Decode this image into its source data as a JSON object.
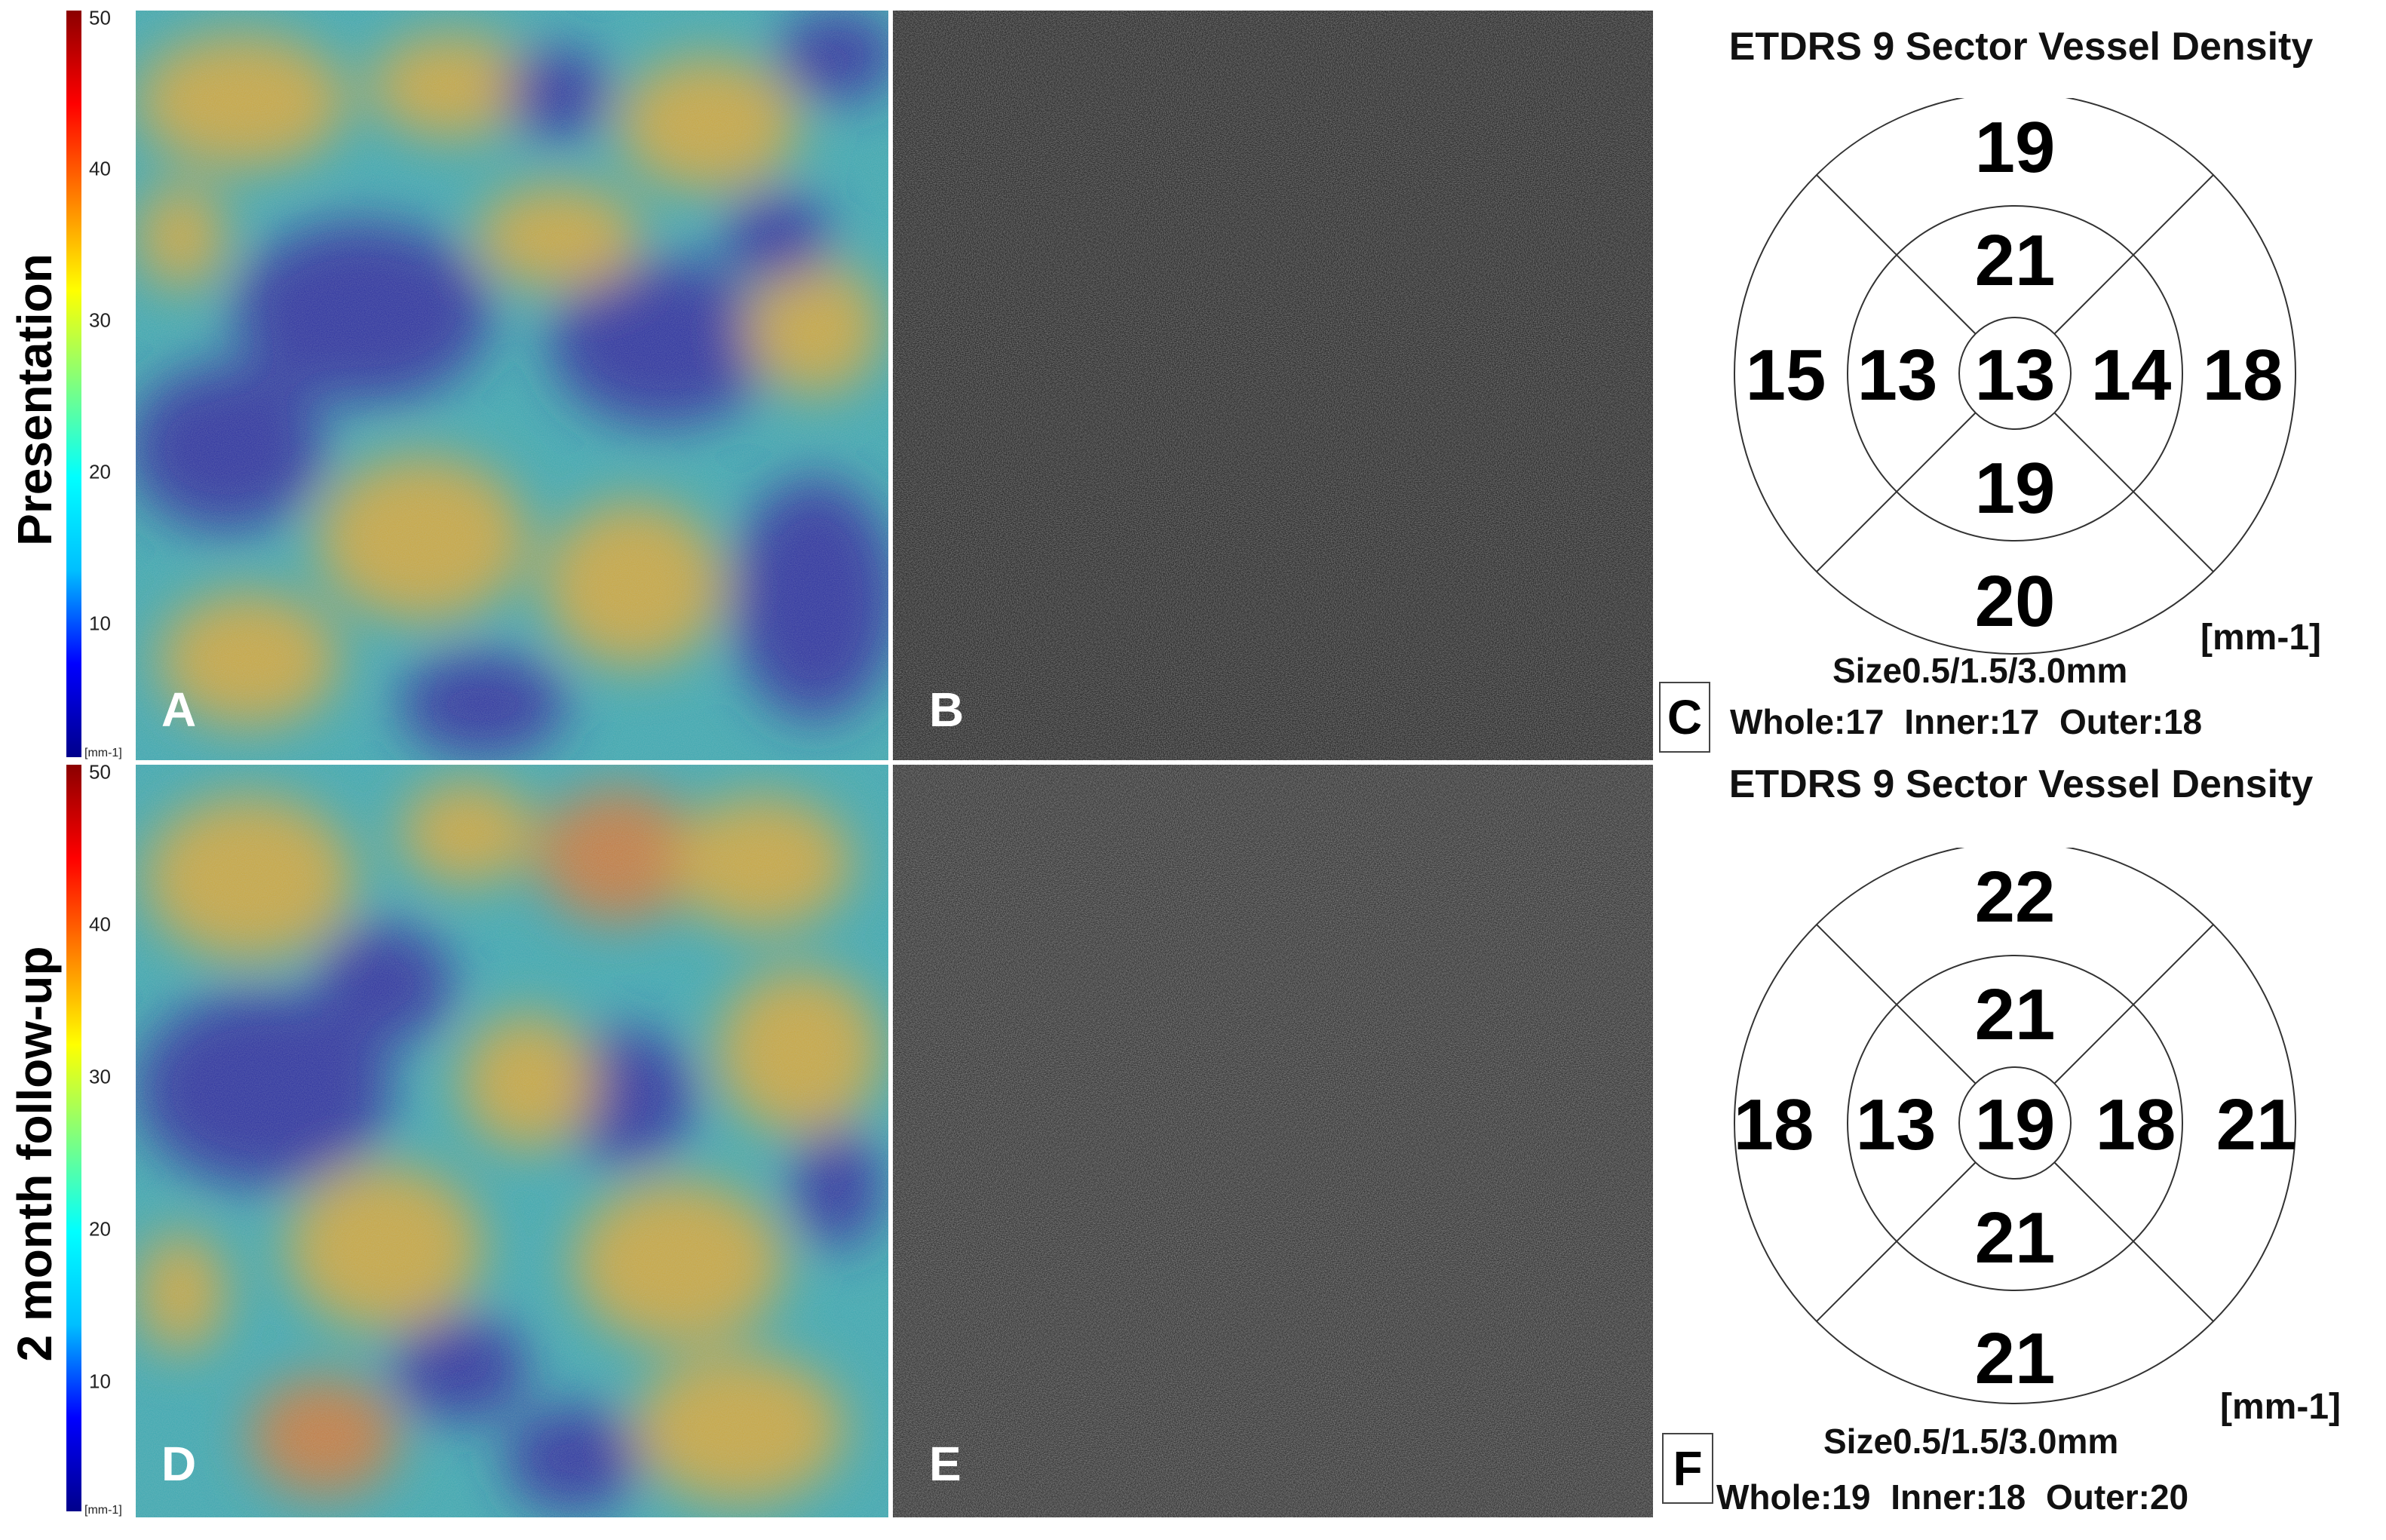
{
  "rows": [
    {
      "label": "Presentation",
      "colorbar": {
        "ticks": [
          "50",
          "40",
          "30",
          "20",
          "10"
        ],
        "unit": "[mm-1]"
      },
      "heatmap_letter": "A",
      "angio_letter": "B",
      "chart": {
        "title": "ETDRS 9 Sector Vessel Density",
        "unit": "[mm-1]",
        "size_label": "Size0.5/1.5/3.0mm",
        "stats": "Whole:17  Inner:17  Outer:18",
        "letter": "C",
        "sectors": {
          "center": "13",
          "inner_superior": "21",
          "inner_inferior": "19",
          "inner_nasal_left": "13",
          "inner_temporal_right": "14",
          "outer_superior": "19",
          "outer_inferior": "20",
          "outer_left": "15",
          "outer_right": "18"
        }
      }
    },
    {
      "label": "2 month follow-up",
      "colorbar": {
        "ticks": [
          "50",
          "40",
          "30",
          "20",
          "10"
        ],
        "unit": "[mm-1]"
      },
      "heatmap_letter": "D",
      "angio_letter": "E",
      "chart": {
        "title": "ETDRS 9 Sector Vessel Density",
        "unit": "[mm-1]",
        "size_label": "Size0.5/1.5/3.0mm",
        "stats": "Whole:19  Inner:18  Outer:20",
        "letter": "F",
        "sectors": {
          "center": "19",
          "inner_superior": "21",
          "inner_inferior": "21",
          "inner_nasal_left": "13",
          "inner_temporal_right": "18",
          "outer_superior": "22",
          "outer_inferior": "21",
          "outer_left": "18",
          "outer_right": "21"
        }
      }
    }
  ],
  "colors": {
    "colorbar_gradient": [
      "#00008b",
      "#0000ff",
      "#00bfff",
      "#00ffff",
      "#7fff7f",
      "#ffff00",
      "#ff7f00",
      "#ff0000",
      "#8b0000"
    ],
    "heatmap_low": "#2a2f9e",
    "heatmap_mid": "#3aa7b0",
    "heatmap_high": "#c9a640",
    "angio_bg": "#2b2b2b"
  }
}
